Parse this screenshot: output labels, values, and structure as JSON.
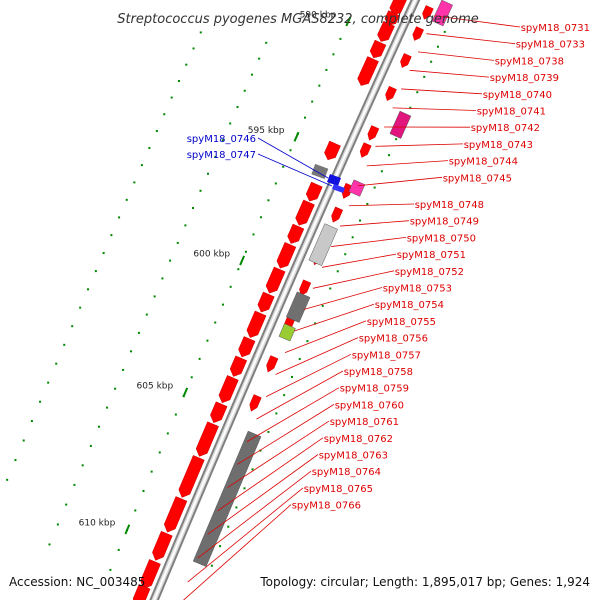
{
  "title": "Streptococcus pyogenes MGAS8232, complete genome",
  "footer": {
    "accession": "Accession: NC_003485",
    "summary": "Topology: circular; Length: 1,895,017 bp; Genes: 1,924"
  },
  "ticks": [
    {
      "label": "590 kbp",
      "t": 0.1
    },
    {
      "label": "595 kbp",
      "t": 0.305
    },
    {
      "label": "600 kbp",
      "t": 0.51
    },
    {
      "label": "605 kbp",
      "t": 0.715
    },
    {
      "label": "610 kbp",
      "t": 0.915
    }
  ],
  "colors": {
    "forward_gene": "#ff0000",
    "reverse_gene": "#ff0000",
    "left_labels": "#0000cc",
    "right_labels": "#dd0000",
    "tick": "#008800",
    "backbone": "#808080"
  },
  "left_labels": [
    "spyM18_0746",
    "spyM18_0747"
  ],
  "right_labels": [
    "spyM18_0731",
    "spyM18_0733",
    "spyM18_0738",
    "spyM18_0739",
    "spyM18_0740",
    "spyM18_0741",
    "spyM18_0742",
    "spyM18_0743",
    "spyM18_0744",
    "spyM18_0745",
    "spyM18_0748",
    "spyM18_0749",
    "spyM18_0750",
    "spyM18_0751",
    "spyM18_0752",
    "spyM18_0753",
    "spyM18_0754",
    "spyM18_0755",
    "spyM18_0756",
    "spyM18_0757",
    "spyM18_0758",
    "spyM18_0759",
    "spyM18_0760",
    "spyM18_0761",
    "spyM18_0762",
    "spyM18_0763",
    "spyM18_0764",
    "spyM18_0765",
    "spyM18_0766"
  ]
}
